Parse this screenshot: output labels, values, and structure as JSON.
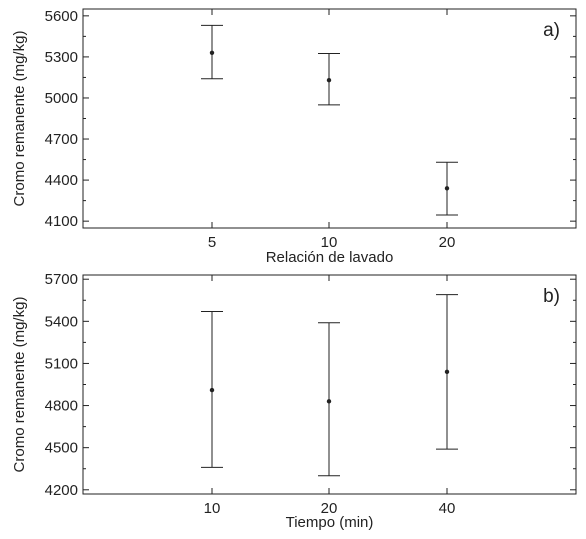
{
  "chart_data": [
    {
      "type": "scatter",
      "panel_label": "a)",
      "xlabel": "Relación de lavado",
      "ylabel": "Cromo remanente (mg/kg)",
      "categories": [
        "5",
        "10",
        "20"
      ],
      "series": [
        {
          "values": [
            5330,
            5130,
            4340
          ],
          "error_low": [
            5140,
            4950,
            4145
          ],
          "error_high": [
            5530,
            5325,
            4530
          ]
        }
      ],
      "ylim": [
        4050,
        5650
      ],
      "yticks": [
        4100,
        4400,
        4700,
        5000,
        5300,
        5600
      ],
      "grid": false
    },
    {
      "type": "scatter",
      "panel_label": "b)",
      "xlabel": "Tiempo (min)",
      "ylabel": "Cromo remanente (mg/kg)",
      "categories": [
        "10",
        "20",
        "40"
      ],
      "series": [
        {
          "values": [
            4910,
            4830,
            5040
          ],
          "error_low": [
            4360,
            4300,
            4490
          ],
          "error_high": [
            5470,
            5390,
            5590
          ]
        }
      ],
      "ylim": [
        4170,
        5730
      ],
      "yticks": [
        4200,
        4500,
        4800,
        5100,
        5400,
        5700
      ],
      "grid": false
    }
  ]
}
